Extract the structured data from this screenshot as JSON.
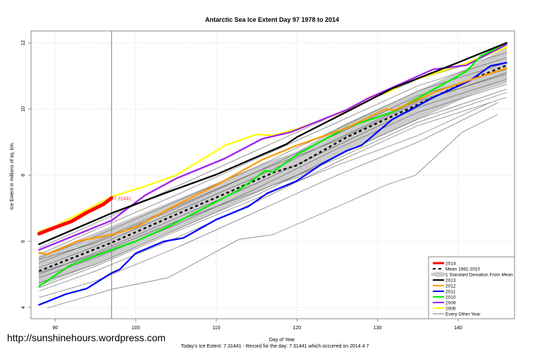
{
  "watermark": "http://sunshinehours.wordpress.com",
  "chart_data": {
    "type": "line",
    "title": "Antarctic Sea Ice Extent Day 97 1978 to 2014",
    "xlabel": "Day of Year",
    "ylabel": "Ice Extent in millions of sq. km.",
    "subtitle": "Today's Ice Extent: 7.31441  - Record for the day: 7.31441 which occurred on 2014 4 7",
    "xlim": [
      87,
      147
    ],
    "ylim": [
      3.66,
      12.36
    ],
    "xticks": [
      90,
      100,
      110,
      120,
      130,
      140
    ],
    "yticks": [
      4,
      6,
      8,
      10,
      12
    ],
    "grid": true,
    "current_day": 97,
    "current_value_label": "7.31441",
    "legend": {
      "position": "bottom-right",
      "entries": [
        {
          "label": "2014",
          "color": "#ff0000",
          "style": "thick"
        },
        {
          "label": "Mean 1981-2010",
          "color": "#000000",
          "style": "dashed"
        },
        {
          "label": "1 Standard Deviation From Mean",
          "color": "#cccccc",
          "style": "band"
        },
        {
          "label": "2013",
          "color": "#000000",
          "style": "solid"
        },
        {
          "label": "2012",
          "color": "#ff9900",
          "style": "solid"
        },
        {
          "label": "2011",
          "color": "#0000ff",
          "style": "solid"
        },
        {
          "label": "2010",
          "color": "#00ee00",
          "style": "solid"
        },
        {
          "label": "2009",
          "color": "#a020f0",
          "style": "solid"
        },
        {
          "label": "2008",
          "color": "#ffff00",
          "style": "solid"
        },
        {
          "label": "Every Other Year",
          "color": "#555555",
          "style": "thin"
        }
      ]
    },
    "sd_band": {
      "x": [
        88,
        97,
        105,
        111,
        117,
        120,
        126,
        134.7,
        141.7,
        146
      ],
      "upper": [
        5.55,
        6.45,
        7.25,
        7.85,
        8.45,
        8.7,
        9.55,
        10.5,
        11.3,
        11.85
      ],
      "lower": [
        4.65,
        5.5,
        6.35,
        7.0,
        7.7,
        7.9,
        8.7,
        9.65,
        10.45,
        10.8
      ]
    },
    "mean": {
      "x": [
        88,
        97,
        105,
        111,
        117.2,
        120,
        126.2,
        134.7,
        141.7,
        146
      ],
      "y": [
        5.1,
        5.96,
        6.81,
        7.43,
        8.09,
        8.3,
        9.15,
        10.1,
        10.9,
        11.32
      ]
    },
    "series": [
      {
        "name": "2008",
        "color": "#ffff00",
        "x": [
          88,
          90,
          97,
          101,
          105,
          111.1,
          115,
          117,
          120,
          126.2,
          129.2,
          131.2,
          133.5,
          141,
          146
        ],
        "y": [
          6.3,
          6.45,
          7.35,
          7.65,
          8.0,
          8.9,
          9.23,
          9.2,
          9.4,
          9.95,
          10.38,
          10.5,
          10.8,
          11.38,
          11.87
        ]
      },
      {
        "name": "2009",
        "color": "#a020f0",
        "x": [
          88,
          97,
          101.2,
          105,
          111,
          115.7,
          119.2,
          126.2,
          128.8,
          136.9,
          141,
          146
        ],
        "y": [
          5.74,
          6.63,
          7.4,
          7.9,
          8.5,
          9.1,
          9.3,
          9.98,
          10.32,
          11.2,
          11.32,
          11.95
        ]
      },
      {
        "name": "2010",
        "color": "#00ee00",
        "x": [
          88,
          91.9,
          97,
          100,
          104.1,
          112.8,
          116,
          117,
          120,
          126.2,
          131.8,
          137,
          141,
          142.8,
          146
        ],
        "y": [
          4.64,
          5.28,
          5.74,
          6.0,
          6.45,
          7.55,
          8.13,
          8.1,
          8.62,
          9.45,
          9.9,
          10.6,
          11.13,
          11.6,
          12.0
        ]
      },
      {
        "name": "2011",
        "color": "#0000ff",
        "x": [
          88,
          91.3,
          93.9,
          97,
          98,
          100,
          103.5,
          105.9,
          110,
          114,
          116.3,
          120,
          123.1,
          126.2,
          128,
          131.8,
          137,
          141.4,
          144,
          146
        ],
        "y": [
          4.08,
          4.4,
          4.57,
          5.04,
          5.15,
          5.64,
          6.0,
          6.1,
          6.66,
          7.06,
          7.45,
          7.83,
          8.34,
          8.74,
          8.9,
          9.68,
          10.36,
          10.85,
          11.3,
          11.4
        ]
      },
      {
        "name": "2012",
        "color": "#ff9900",
        "x": [
          88,
          89,
          92.7,
          97,
          100,
          104.1,
          110,
          115.7,
          120,
          126.2,
          131,
          132,
          137.3,
          142,
          146
        ],
        "y": [
          5.66,
          5.6,
          6.0,
          6.2,
          6.42,
          6.98,
          7.7,
          8.47,
          8.9,
          9.43,
          10.0,
          9.96,
          10.53,
          10.92,
          11.23
        ]
      },
      {
        "name": "2013",
        "color": "#000000",
        "x": [
          88,
          97,
          104.1,
          110,
          115.2,
          118.7,
          120,
          126.2,
          131.8,
          138.2,
          146
        ],
        "y": [
          5.91,
          6.85,
          7.5,
          8.02,
          8.57,
          8.94,
          9.15,
          9.92,
          10.62,
          11.23,
          12.0
        ]
      },
      {
        "name": "2014",
        "color": "#ff0000",
        "x": [
          88,
          90,
          92,
          94,
          96,
          97
        ],
        "y": [
          6.23,
          6.42,
          6.6,
          6.88,
          7.12,
          7.31
        ]
      }
    ],
    "other_years": [
      {
        "x": [
          89,
          97,
          104,
          112.8,
          117,
          126,
          131,
          134.7,
          140.5,
          144.9
        ],
        "y": [
          3.98,
          4.55,
          4.9,
          6.06,
          6.2,
          7.15,
          7.7,
          8.0,
          9.3,
          9.83
        ]
      },
      {
        "x": [
          88,
          95,
          105,
          115,
          125,
          135,
          145
        ],
        "y": [
          4.3,
          4.8,
          5.8,
          6.9,
          8.0,
          9.0,
          10.2
        ]
      },
      {
        "x": [
          88,
          95,
          105,
          115,
          125,
          135,
          146
        ],
        "y": [
          4.5,
          5.1,
          6.1,
          7.2,
          8.4,
          9.5,
          10.35
        ]
      },
      {
        "x": [
          88,
          95,
          105,
          115,
          125,
          135,
          146
        ],
        "y": [
          4.75,
          5.3,
          6.35,
          7.4,
          8.6,
          9.7,
          10.6
        ]
      },
      {
        "x": [
          88,
          95,
          105,
          115,
          125,
          135,
          146
        ],
        "y": [
          4.9,
          5.5,
          6.5,
          7.6,
          8.8,
          9.9,
          10.75
        ]
      },
      {
        "x": [
          88,
          95,
          105,
          115,
          125,
          135,
          146
        ],
        "y": [
          5.0,
          5.65,
          6.7,
          7.75,
          8.9,
          10.05,
          10.9
        ]
      },
      {
        "x": [
          88,
          95,
          105,
          115,
          125,
          135,
          146
        ],
        "y": [
          5.2,
          5.85,
          6.9,
          7.95,
          9.1,
          10.25,
          11.05
        ]
      },
      {
        "x": [
          88,
          95,
          105,
          115,
          125,
          135,
          146
        ],
        "y": [
          5.35,
          6.0,
          7.05,
          8.1,
          9.25,
          10.4,
          11.2
        ]
      },
      {
        "x": [
          88,
          95,
          105,
          115,
          125,
          135,
          146
        ],
        "y": [
          5.5,
          6.15,
          7.2,
          8.25,
          9.4,
          10.55,
          11.4
        ]
      },
      {
        "x": [
          88,
          95,
          105,
          115,
          125,
          135,
          146
        ],
        "y": [
          5.6,
          6.35,
          7.4,
          8.5,
          9.6,
          10.7,
          11.55
        ]
      },
      {
        "x": [
          88,
          95,
          105,
          115,
          125,
          135,
          146
        ],
        "y": [
          5.8,
          6.55,
          7.65,
          8.75,
          9.85,
          10.9,
          11.7
        ]
      },
      {
        "x": [
          88,
          95,
          105,
          115,
          125,
          135,
          144
        ],
        "y": [
          4.6,
          5.25,
          6.3,
          7.3,
          8.3,
          9.2,
          10.2
        ]
      },
      {
        "x": [
          88,
          95,
          105,
          115,
          125,
          135,
          146
        ],
        "y": [
          5.05,
          5.6,
          6.6,
          7.5,
          8.5,
          9.6,
          10.5
        ]
      },
      {
        "x": [
          88,
          95,
          105,
          115,
          125,
          135,
          146
        ],
        "y": [
          5.45,
          5.95,
          7.0,
          8.1,
          9.05,
          10.2,
          11.1
        ]
      }
    ]
  }
}
